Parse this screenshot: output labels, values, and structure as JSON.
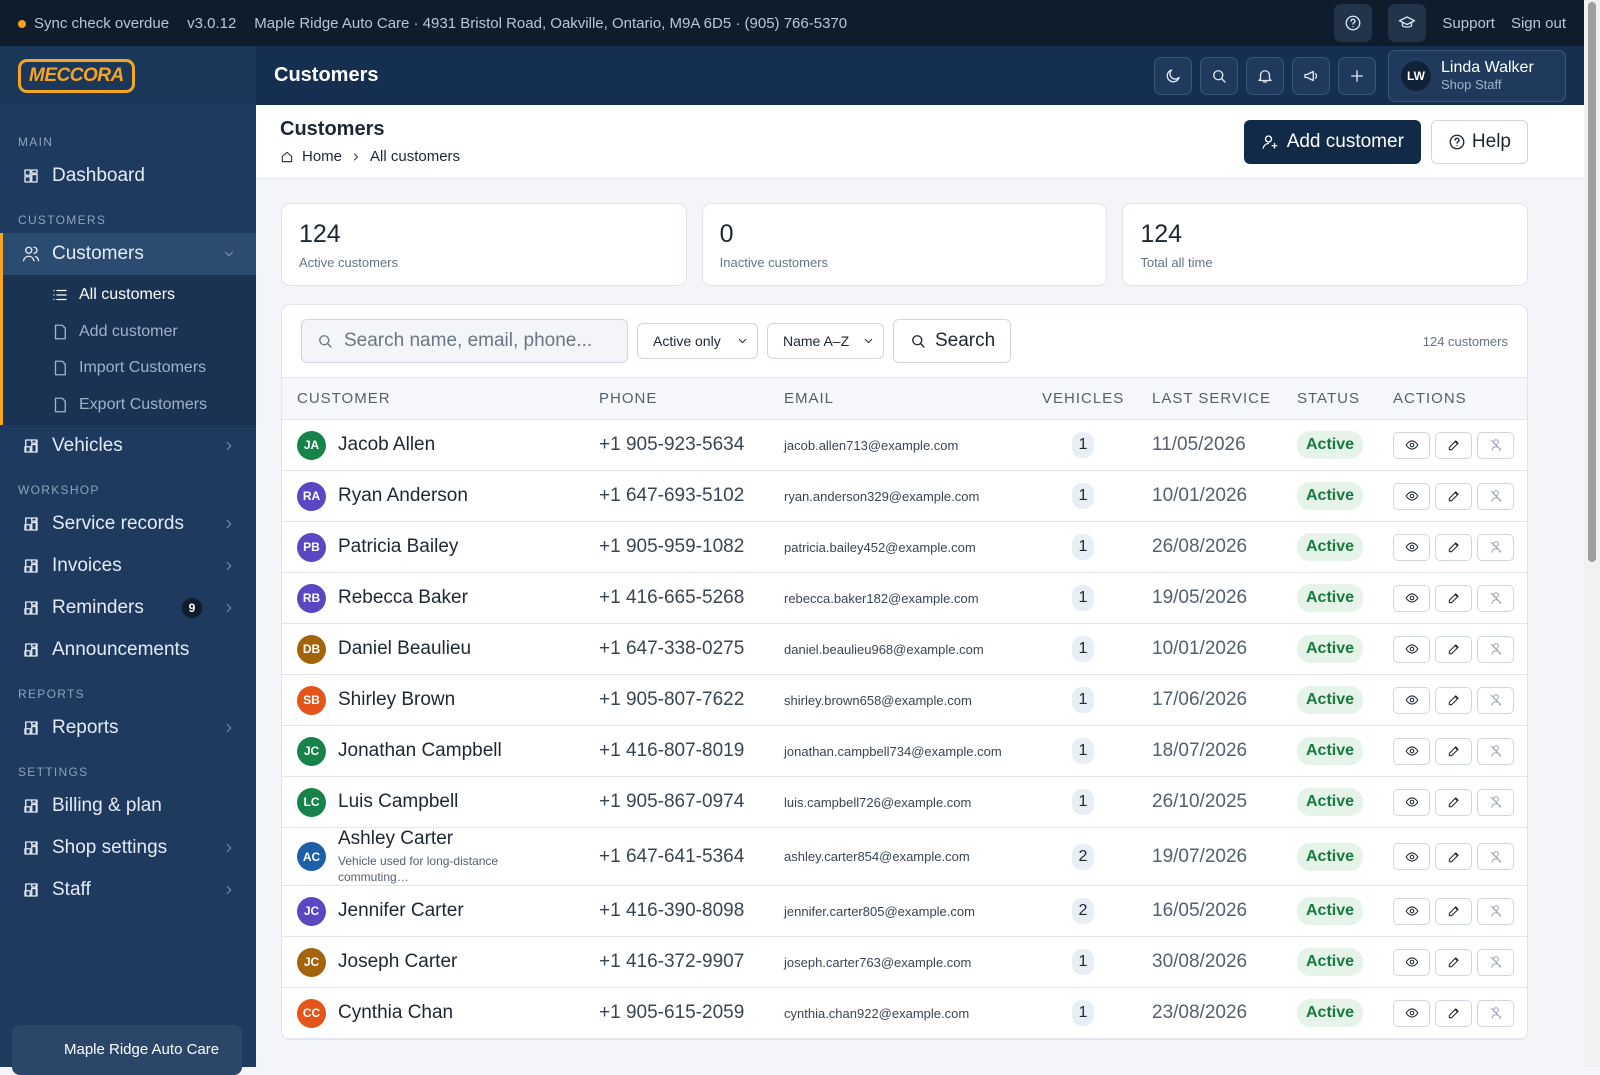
{
  "top_bar": {
    "sync_status": "Sync check overdue",
    "version": "v3.0.12",
    "shop_info": "Maple Ridge Auto Care · 4931 Bristol Road, Oakville, Ontario, M9A 6D5 · (905) 766-5370",
    "links": [
      "Support",
      "Sign out"
    ]
  },
  "header": {
    "logo": "MECCORA",
    "title": "Customers",
    "user": {
      "initials": "LW",
      "name": "Linda Walker",
      "role": "Shop Staff"
    }
  },
  "sidebar": {
    "sections": [
      {
        "title": "MAIN",
        "items": [
          {
            "label": "Dashboard"
          }
        ]
      },
      {
        "title": "CUSTOMERS",
        "items": [
          {
            "label": "Customers",
            "active": true,
            "expandable": true,
            "children": [
              "All customers",
              "Add customer",
              "Import Customers",
              "Export Customers"
            ]
          },
          {
            "label": "Vehicles",
            "expandable": true
          }
        ]
      },
      {
        "title": "WORKSHOP",
        "items": [
          {
            "label": "Service records",
            "expandable": true
          },
          {
            "label": "Invoices",
            "expandable": true
          },
          {
            "label": "Reminders",
            "badge": 9,
            "expandable": true
          },
          {
            "label": "Announcements"
          }
        ]
      },
      {
        "title": "REPORTS",
        "items": [
          {
            "label": "Reports",
            "expandable": true
          }
        ]
      },
      {
        "title": "SETTINGS",
        "items": [
          {
            "label": "Billing & plan"
          },
          {
            "label": "Shop settings",
            "expandable": true
          },
          {
            "label": "Staff",
            "expandable": true
          }
        ]
      }
    ],
    "footer": "Maple Ridge Auto Care"
  },
  "page": {
    "heading": "Customers",
    "breadcrumb": [
      "Home",
      "All customers"
    ],
    "actions": [
      "Add customer",
      "Help"
    ],
    "stats": [
      {
        "value": 124,
        "label": "Active customers"
      },
      {
        "value": 0,
        "label": "Inactive customers"
      },
      {
        "value": 124,
        "label": "Total all time"
      }
    ],
    "filters": {
      "search_placeholder": "Search name, email, phone...",
      "status": "Active only",
      "sort": "Name A–Z",
      "button": "Search",
      "count": "124 customers"
    },
    "table": {
      "columns": [
        "CUSTOMER",
        "PHONE",
        "EMAIL",
        "VEHICLES",
        "LAST SERVICE",
        "STATUS",
        "ACTIONS"
      ],
      "rows": [
        {
          "initials": "JA",
          "color": "#17834a",
          "name": "Jacob Allen",
          "phone": "+1 905-923-5634",
          "email": "jacob.allen713@example.com",
          "vehicles": 1,
          "last_service": "11/05/2026",
          "status": "Active"
        },
        {
          "initials": "RA",
          "color": "#5a48c2",
          "name": "Ryan Anderson",
          "phone": "+1 647-693-5102",
          "email": "ryan.anderson329@example.com",
          "vehicles": 1,
          "last_service": "10/01/2026",
          "status": "Active"
        },
        {
          "initials": "PB",
          "color": "#5a48c2",
          "name": "Patricia Bailey",
          "phone": "+1 905-959-1082",
          "email": "patricia.bailey452@example.com",
          "vehicles": 1,
          "last_service": "26/08/2026",
          "status": "Active"
        },
        {
          "initials": "RB",
          "color": "#5a48c2",
          "name": "Rebecca Baker",
          "phone": "+1 416-665-5268",
          "email": "rebecca.baker182@example.com",
          "vehicles": 1,
          "last_service": "19/05/2026",
          "status": "Active"
        },
        {
          "initials": "DB",
          "color": "#a4640b",
          "name": "Daniel Beaulieu",
          "phone": "+1 647-338-0275",
          "email": "daniel.beaulieu968@example.com",
          "vehicles": 1,
          "last_service": "10/01/2026",
          "status": "Active"
        },
        {
          "initials": "SB",
          "color": "#e4551b",
          "name": "Shirley Brown",
          "phone": "+1 905-807-7622",
          "email": "shirley.brown658@example.com",
          "vehicles": 1,
          "last_service": "17/06/2026",
          "status": "Active"
        },
        {
          "initials": "JC",
          "color": "#17834a",
          "name": "Jonathan Campbell",
          "phone": "+1 416-807-8019",
          "email": "jonathan.campbell734@example.com",
          "vehicles": 1,
          "last_service": "18/07/2026",
          "status": "Active"
        },
        {
          "initials": "LC",
          "color": "#17834a",
          "name": "Luis Campbell",
          "phone": "+1 905-867-0974",
          "email": "luis.campbell726@example.com",
          "vehicles": 1,
          "last_service": "26/10/2025",
          "status": "Active"
        },
        {
          "initials": "AC",
          "color": "#1d5fa8",
          "name": "Ashley Carter",
          "note": "Vehicle used for long-distance commuting…",
          "phone": "+1 647-641-5364",
          "email": "ashley.carter854@example.com",
          "vehicles": 2,
          "last_service": "19/07/2026",
          "status": "Active"
        },
        {
          "initials": "JC",
          "color": "#5a48c2",
          "name": "Jennifer Carter",
          "phone": "+1 416-390-8098",
          "email": "jennifer.carter805@example.com",
          "vehicles": 2,
          "last_service": "16/05/2026",
          "status": "Active"
        },
        {
          "initials": "JC",
          "color": "#a4640b",
          "name": "Joseph Carter",
          "phone": "+1 416-372-9907",
          "email": "joseph.carter763@example.com",
          "vehicles": 1,
          "last_service": "30/08/2026",
          "status": "Active"
        },
        {
          "initials": "CC",
          "color": "#e4551b",
          "name": "Cynthia Chan",
          "phone": "+1 905-615-2059",
          "email": "cynthia.chan922@example.com",
          "vehicles": 1,
          "last_service": "23/08/2026",
          "status": "Active"
        }
      ]
    }
  }
}
